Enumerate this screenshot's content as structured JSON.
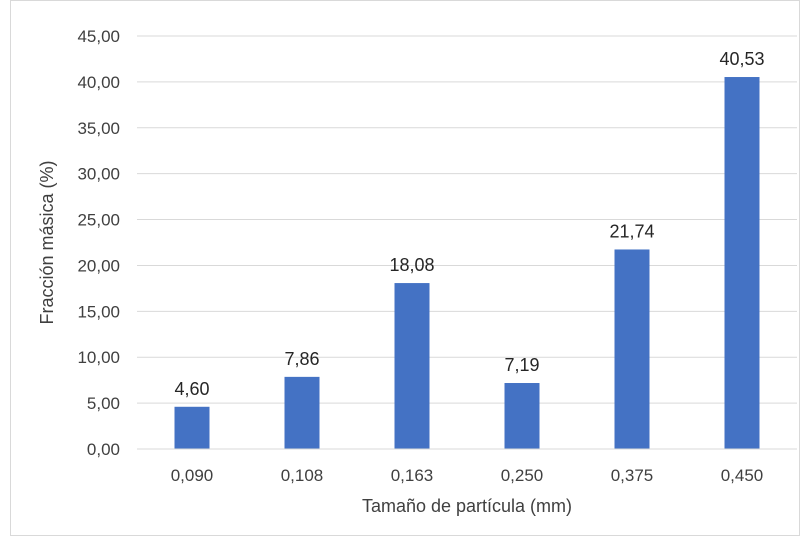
{
  "chart_data": {
    "type": "bar",
    "categories": [
      "0,090",
      "0,108",
      "0,163",
      "0,250",
      "0,375",
      "0,450"
    ],
    "values": [
      4.6,
      7.86,
      18.08,
      7.19,
      21.74,
      40.53
    ],
    "value_labels": [
      "4,60",
      "7,86",
      "18,08",
      "7,19",
      "21,74",
      "40,53"
    ],
    "xlabel": "Tamaño de partícula (mm)",
    "ylabel": "Fracción másica (%)",
    "ylim": [
      0,
      45
    ],
    "yticks": [
      0,
      5,
      10,
      15,
      20,
      25,
      30,
      35,
      40,
      45
    ],
    "ytick_labels": [
      "0,00",
      "5,00",
      "10,00",
      "15,00",
      "20,00",
      "25,00",
      "30,00",
      "35,00",
      "40,00",
      "45,00"
    ],
    "grid": true,
    "legend": "none",
    "bar_color": "#4472C4",
    "grid_color": "#d9d9d9"
  }
}
